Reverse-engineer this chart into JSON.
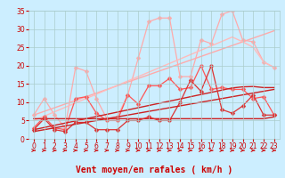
{
  "x": [
    0,
    1,
    2,
    3,
    4,
    5,
    6,
    7,
    8,
    9,
    10,
    11,
    12,
    13,
    14,
    15,
    16,
    17,
    18,
    19,
    20,
    21,
    22,
    23
  ],
  "series": [
    {
      "name": "rafales_jagged",
      "color": "#ffaaaa",
      "lw": 0.9,
      "marker": "D",
      "markersize": 2.5,
      "values": [
        6.5,
        11,
        6.5,
        3.0,
        19.5,
        18.5,
        11,
        5.5,
        6.0,
        12.0,
        22.0,
        32.0,
        33.0,
        33.0,
        17.0,
        17.0,
        27.0,
        26.0,
        34.0,
        35.0,
        27.0,
        26.5,
        21.0,
        19.5
      ]
    },
    {
      "name": "rafales_trend1",
      "color": "#ffaaaa",
      "lw": 1.0,
      "marker": null,
      "markersize": 0,
      "values": [
        6.5,
        7.5,
        8.5,
        9.5,
        10.5,
        11.5,
        12.5,
        13.5,
        14.5,
        15.5,
        16.5,
        17.5,
        18.5,
        19.5,
        20.5,
        21.5,
        22.5,
        23.5,
        24.5,
        25.5,
        26.5,
        27.5,
        28.5,
        29.5
      ]
    },
    {
      "name": "rafales_trend2",
      "color": "#ffbbbb",
      "lw": 1.0,
      "marker": null,
      "markersize": 0,
      "values": [
        5.0,
        6.2,
        7.4,
        8.6,
        9.8,
        11.0,
        12.2,
        13.4,
        14.6,
        15.8,
        17.0,
        18.2,
        19.4,
        20.6,
        21.8,
        23.0,
        24.2,
        25.4,
        26.6,
        27.8,
        26.5,
        25.0,
        21.0,
        19.5
      ]
    },
    {
      "name": "moy_jagged",
      "color": "#ff5555",
      "lw": 0.9,
      "marker": "D",
      "markersize": 2.5,
      "values": [
        3.0,
        6.0,
        3.0,
        2.5,
        11.0,
        11.5,
        7.0,
        5.0,
        5.0,
        12.0,
        9.5,
        14.5,
        14.5,
        16.5,
        13.5,
        14.0,
        20.0,
        13.5,
        14.0,
        13.5,
        13.5,
        11.0,
        11.5,
        6.5
      ]
    },
    {
      "name": "moy_trend1",
      "color": "#cc2222",
      "lw": 1.0,
      "marker": null,
      "markersize": 0,
      "values": [
        2.5,
        3.1,
        3.7,
        4.3,
        4.9,
        5.5,
        6.1,
        6.7,
        7.3,
        7.9,
        8.5,
        9.1,
        9.7,
        10.3,
        10.9,
        11.5,
        12.1,
        12.7,
        13.3,
        13.9,
        14.2,
        14.3,
        14.0,
        14.0
      ]
    },
    {
      "name": "moy_flat",
      "color": "#cc2222",
      "lw": 1.0,
      "marker": null,
      "markersize": 0,
      "values": [
        5.5,
        5.5,
        5.5,
        5.5,
        5.5,
        5.5,
        5.5,
        5.5,
        5.5,
        5.5,
        5.5,
        5.5,
        5.5,
        5.5,
        5.5,
        5.5,
        5.5,
        5.5,
        5.5,
        5.5,
        5.5,
        5.5,
        5.5,
        6.0
      ]
    },
    {
      "name": "moy_jagged2",
      "color": "#dd3333",
      "lw": 0.9,
      "marker": "D",
      "markersize": 2.5,
      "values": [
        2.5,
        5.5,
        2.5,
        2.0,
        4.5,
        4.5,
        2.5,
        2.5,
        2.5,
        5.0,
        5.0,
        6.0,
        5.0,
        5.0,
        10.0,
        16.0,
        13.0,
        20.0,
        8.0,
        7.0,
        9.0,
        12.0,
        6.5,
        6.5
      ]
    },
    {
      "name": "moy_trend2",
      "color": "#cc2222",
      "lw": 1.0,
      "marker": null,
      "markersize": 0,
      "values": [
        2.0,
        2.5,
        3.0,
        3.5,
        4.0,
        4.5,
        5.0,
        5.5,
        6.0,
        6.5,
        7.0,
        7.5,
        8.0,
        8.5,
        9.0,
        9.5,
        10.0,
        10.5,
        11.0,
        11.5,
        12.0,
        12.5,
        13.0,
        13.5
      ]
    }
  ],
  "xlabel": "Vent moyen/en rafales ( km/h )",
  "xlim": [
    -0.5,
    23.5
  ],
  "ylim": [
    0,
    35
  ],
  "yticks": [
    0,
    5,
    10,
    15,
    20,
    25,
    30,
    35
  ],
  "xticks": [
    0,
    1,
    2,
    3,
    4,
    5,
    6,
    7,
    8,
    9,
    10,
    11,
    12,
    13,
    14,
    15,
    16,
    17,
    18,
    19,
    20,
    21,
    22,
    23
  ],
  "bg_color": "#cceeff",
  "grid_color": "#aacccc",
  "text_color": "#cc0000",
  "tick_fontsize": 5.5,
  "xlabel_fontsize": 7
}
